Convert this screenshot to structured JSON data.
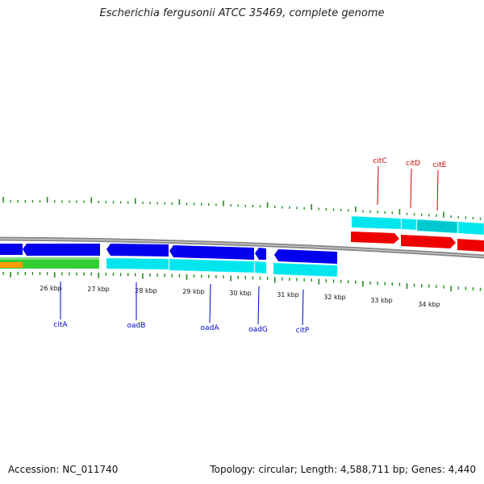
{
  "title": "Escherichia fergusonii ATCC 35469, complete genome",
  "footer": {
    "accession": "Accession: NC_011740",
    "stats": "Topology: circular; Length: 4,588,711 bp; Genes: 4,440"
  },
  "scale_labels": [
    "26 kbp",
    "27 kbp",
    "28 kbp",
    "29 kbp",
    "30 kbp",
    "31 kbp",
    "32 kbp",
    "33 kbp",
    "34 kbp"
  ],
  "genes_top": [
    "citC",
    "citD",
    "citE"
  ],
  "genes_bottom": [
    "citA",
    "oadB",
    "oadA",
    "oadG",
    "citP"
  ],
  "colors": {
    "backbone": "#808080",
    "forward_cds": "#ff0000",
    "reverse_cds": "#0000ff",
    "cyan_track": "#00e5ee",
    "green_track": "#33cc33",
    "orange_track": "#ff9900",
    "tick": "#228b22",
    "top_label": "#cc0000",
    "bottom_label": "#0000cc"
  }
}
